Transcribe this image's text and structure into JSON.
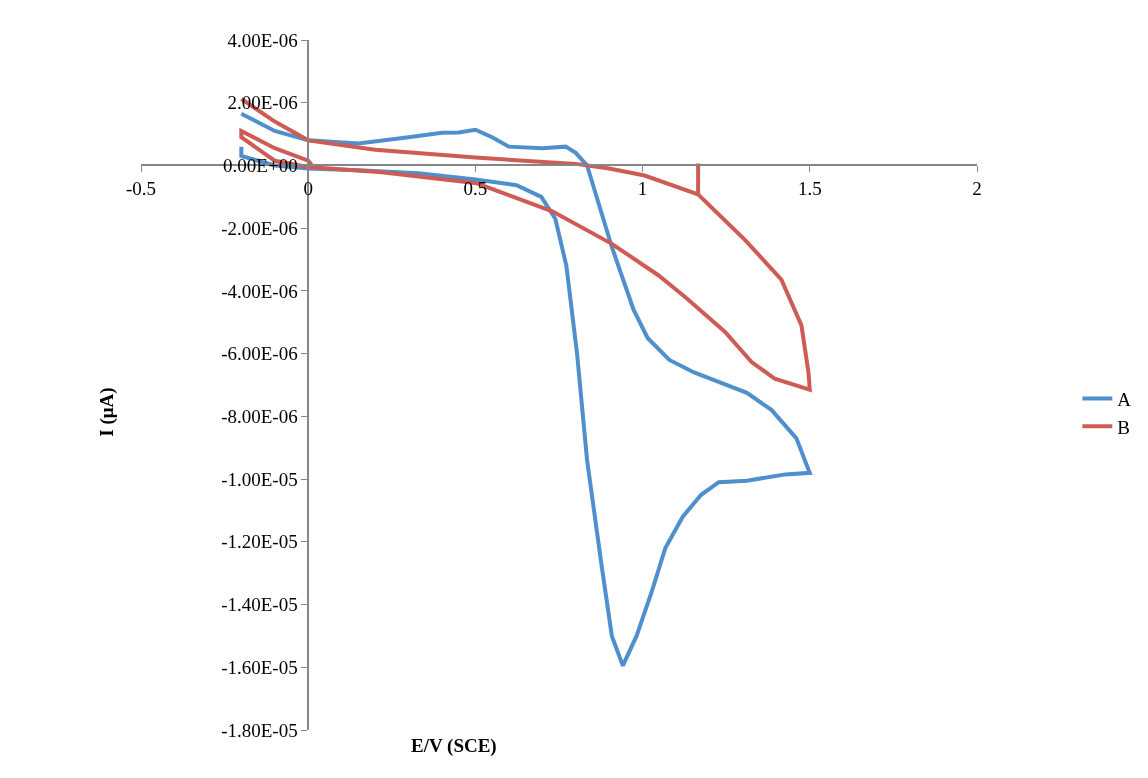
{
  "chart_data": {
    "type": "line",
    "xlabel": "E/V (SCE)",
    "ylabel": "I (μA)",
    "xlim": [
      -0.5,
      2
    ],
    "xticks": [
      -0.5,
      0,
      0.5,
      1,
      1.5,
      2
    ],
    "ylim": [
      -1.8e-05,
      4e-06
    ],
    "yticks": [
      {
        "value": 4e-06,
        "label": "4.00E-06"
      },
      {
        "value": 2e-06,
        "label": "2.00E-06"
      },
      {
        "value": 0,
        "label": "0.00E+00"
      },
      {
        "value": -2e-06,
        "label": "-2.00E-06"
      },
      {
        "value": -4e-06,
        "label": "-4.00E-06"
      },
      {
        "value": -6e-06,
        "label": "-6.00E-06"
      },
      {
        "value": -8e-06,
        "label": "-8.00E-06"
      },
      {
        "value": -1e-05,
        "label": "-1.00E-05"
      },
      {
        "value": -1.2e-05,
        "label": "-1.20E-05"
      },
      {
        "value": -1.4e-05,
        "label": "-1.40E-05"
      },
      {
        "value": -1.6e-05,
        "label": "-1.60E-05"
      },
      {
        "value": -1.8e-05,
        "label": "-1.80E-05"
      }
    ],
    "legend": "right",
    "marker": "none",
    "line_style": "solid",
    "series": [
      {
        "name": "A",
        "color": "#4f8fcb",
        "x": [
          -0.2,
          -0.1,
          0,
          0.15,
          0.3,
          0.4,
          0.45,
          0.5,
          0.55,
          0.6,
          0.7,
          0.77,
          0.8,
          0.834,
          0.908,
          0.973,
          1.015,
          1.08,
          1.154,
          1.312,
          1.386,
          1.46,
          1.496,
          1.5,
          1.427,
          1.312,
          1.228,
          1.175,
          1.12,
          1.068,
          1.027,
          0.982,
          0.941,
          0.908,
          0.878,
          0.834,
          0.804,
          0.772,
          0.739,
          0.697,
          0.623,
          0.5,
          0.33,
          0.15,
          0,
          -0.1,
          -0.2,
          -0.2
        ],
        "values": [
          1.65e-06,
          1.1e-06,
          8e-07,
          7e-07,
          9e-07,
          1.04e-06,
          1.05e-06,
          1.14e-06,
          9e-07,
          6e-07,
          5.5e-07,
          6e-07,
          4e-07,
          0,
          -2.6e-06,
          -4.6e-06,
          -5.5e-06,
          -6.2e-06,
          -6.6e-06,
          -7.25e-06,
          -7.8e-06,
          -8.7e-06,
          -9.7e-06,
          -9.8e-06,
          -9.85e-06,
          -1.005e-05,
          -1.01e-05,
          -1.05e-05,
          -1.12e-05,
          -1.22e-05,
          -1.36e-05,
          -1.5e-05,
          -1.595e-05,
          -1.5e-05,
          -1.28e-05,
          -9.4e-06,
          -6e-06,
          -3.2e-06,
          -1.7e-06,
          -1e-06,
          -6.3e-07,
          -4.5e-07,
          -2.5e-07,
          -1.5e-07,
          -1e-07,
          0,
          3e-07,
          6e-07
        ]
      },
      {
        "name": "B",
        "color": "#cd5c55",
        "x": [
          -0.2,
          -0.1,
          0,
          0.2,
          0.5,
          0.8,
          0.9,
          1.006,
          1.166,
          1.166,
          1.166,
          1.306,
          1.415,
          1.475,
          1.496,
          1.5,
          1.395,
          1.326,
          1.246,
          1.128,
          1.047,
          0.908,
          0.73,
          0.504,
          0.22,
          0,
          -0.1,
          -0.2,
          -0.2,
          -0.1,
          0,
          0.01
        ],
        "values": [
          2.12e-06,
          1.4e-06,
          8e-07,
          5e-07,
          2.5e-07,
          5e-08,
          -1e-07,
          -3.2e-07,
          -9.2e-07,
          6e-08,
          -9.2e-07,
          -2.37e-06,
          -3.64e-06,
          -5.1e-06,
          -6.6e-06,
          -7.15e-06,
          -6.8e-06,
          -6.27e-06,
          -5.3e-06,
          -4.2e-06,
          -3.5e-06,
          -2.5e-06,
          -1.46e-06,
          -5.7e-07,
          -2.2e-07,
          -5e-08,
          1.5e-07,
          9e-07,
          1.1e-06,
          5.5e-07,
          1.5e-07,
          2e-08
        ]
      }
    ]
  }
}
